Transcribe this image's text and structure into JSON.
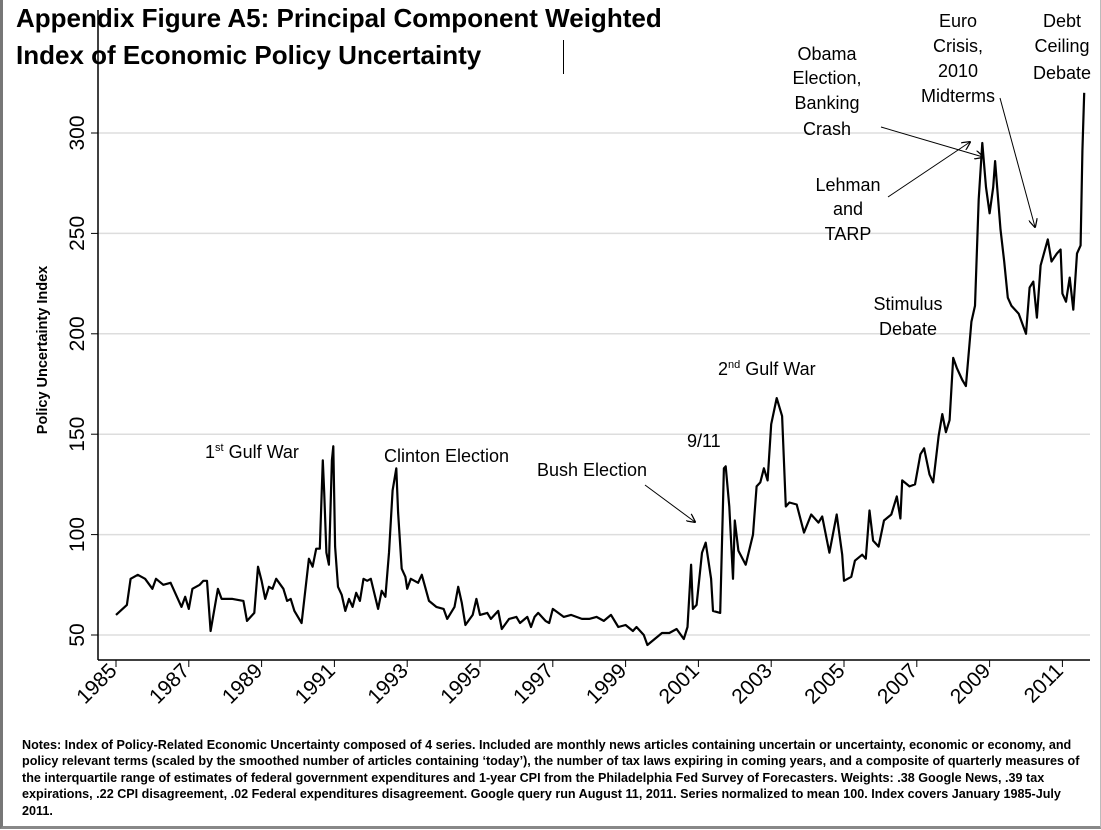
{
  "title_lines": [
    "Appendix Figure A5: Principal Component Weighted",
    "Index of Economic Policy Uncertainty"
  ],
  "notes": "Notes: Index of Policy-Related Economic Uncertainty composed of 4 series. Included are monthly news articles containing uncertain or uncertainty, economic or economy, and policy relevant terms (scaled by the smoothed number of articles containing ‘today’), the number of tax laws expiring in coming years, and a composite of quarterly measures of the interquartile range of estimates of federal government expenditures and 1-year CPI from the Philadelphia Fed Survey of Forecasters. Weights: .38 Google News, .39 tax expirations, .22 CPI disagreement, .02 Federal expenditures disagreement. Google query run August 11, 2011. Series normalized to mean 100. Index covers January 1985-July 2011.",
  "chart_data": {
    "type": "line",
    "title": "Appendix Figure A5: Principal Component Weighted Index of Economic Policy Uncertainty",
    "xlabel": "",
    "ylabel": "Policy Uncertainty Index",
    "xlim": [
      1985,
      2011.6
    ],
    "ylim": [
      40,
      325
    ],
    "x_ticks": [
      "1985",
      "1987",
      "1989",
      "1991",
      "1993",
      "1995",
      "1997",
      "1999",
      "2001",
      "2003",
      "2005",
      "2007",
      "2009",
      "2011"
    ],
    "y_ticks": [
      "50",
      "100",
      "150",
      "200",
      "250",
      "300"
    ],
    "grid": true,
    "line_color": "#000000",
    "grid_color": "#dddddd",
    "x": [
      1985.0,
      1985.3,
      1985.4,
      1985.6,
      1985.8,
      1986.0,
      1986.1,
      1986.3,
      1986.5,
      1986.8,
      1986.9,
      1987.0,
      1987.1,
      1987.3,
      1987.4,
      1987.5,
      1987.6,
      1987.8,
      1987.9,
      1988.2,
      1988.5,
      1988.6,
      1988.8,
      1988.9,
      1989.0,
      1989.1,
      1989.2,
      1989.3,
      1989.4,
      1989.6,
      1989.7,
      1989.8,
      1989.9,
      1990.1,
      1990.3,
      1990.4,
      1990.5,
      1990.6,
      1990.68,
      1990.72,
      1990.78,
      1990.85,
      1990.93,
      1990.97,
      1991.02,
      1991.1,
      1991.2,
      1991.3,
      1991.4,
      1991.5,
      1991.6,
      1991.7,
      1991.8,
      1991.9,
      1992.0,
      1992.2,
      1992.3,
      1992.4,
      1992.5,
      1992.6,
      1992.7,
      1992.75,
      1992.85,
      1992.95,
      1993.0,
      1993.1,
      1993.3,
      1993.4,
      1993.6,
      1993.8,
      1994.0,
      1994.1,
      1994.3,
      1994.4,
      1994.5,
      1994.6,
      1994.8,
      1994.9,
      1995.0,
      1995.2,
      1995.3,
      1995.5,
      1995.6,
      1995.8,
      1996.0,
      1996.1,
      1996.3,
      1996.4,
      1996.5,
      1996.6,
      1996.8,
      1996.9,
      1997.0,
      1997.3,
      1997.5,
      1997.8,
      1998.0,
      1998.2,
      1998.4,
      1998.6,
      1998.8,
      1999.0,
      1999.2,
      1999.3,
      1999.5,
      1999.6,
      1999.8,
      2000.0,
      2000.2,
      2000.4,
      2000.6,
      2000.7,
      2000.8,
      2000.85,
      2000.95,
      2001.1,
      2001.2,
      2001.35,
      2001.4,
      2001.6,
      2001.7,
      2001.75,
      2001.85,
      2001.95,
      2002.0,
      2002.1,
      2002.3,
      2002.5,
      2002.6,
      2002.7,
      2002.8,
      2002.9,
      2003.0,
      2003.15,
      2003.3,
      2003.4,
      2003.5,
      2003.7,
      2003.9,
      2004.1,
      2004.3,
      2004.4,
      2004.6,
      2004.8,
      2004.95,
      2005.0,
      2005.2,
      2005.3,
      2005.5,
      2005.6,
      2005.7,
      2005.8,
      2005.95,
      2006.1,
      2006.3,
      2006.45,
      2006.55,
      2006.6,
      2006.8,
      2006.95,
      2007.1,
      2007.2,
      2007.35,
      2007.45,
      2007.6,
      2007.7,
      2007.8,
      2007.9,
      2008.0,
      2008.1,
      2008.25,
      2008.35,
      2008.5,
      2008.6,
      2008.7,
      2008.8,
      2008.9,
      2009.0,
      2009.1,
      2009.15,
      2009.3,
      2009.4,
      2009.5,
      2009.6,
      2009.8,
      2010.0,
      2010.1,
      2010.2,
      2010.3,
      2010.4,
      2010.6,
      2010.7,
      2010.85,
      2010.95,
      2011.0,
      2011.1,
      2011.2,
      2011.3,
      2011.4,
      2011.5,
      2011.55,
      2011.6
    ],
    "values": [
      60,
      65,
      78,
      80,
      78,
      73,
      78,
      75,
      76,
      64,
      69,
      63,
      73,
      75,
      77,
      77,
      52,
      73,
      68,
      68,
      67,
      57,
      61,
      84,
      77,
      68,
      74,
      73,
      78,
      73,
      67,
      68,
      62,
      56,
      88,
      84,
      93,
      93,
      137,
      121,
      91,
      85,
      137,
      144,
      94,
      74,
      70,
      62,
      68,
      64,
      71,
      67,
      78,
      77,
      78,
      63,
      72,
      69,
      91,
      122,
      133,
      111,
      83,
      79,
      73,
      78,
      76,
      80,
      67,
      64,
      63,
      58,
      64,
      74,
      66,
      55,
      60,
      68,
      60,
      61,
      58,
      62,
      53,
      58,
      59,
      56,
      59,
      54,
      59,
      61,
      57,
      56,
      63,
      59,
      60,
      58,
      58,
      59,
      57,
      60,
      54,
      55,
      52,
      54,
      50,
      45,
      48,
      51,
      51,
      53,
      48,
      54,
      85,
      63,
      65,
      91,
      96,
      78,
      62,
      61,
      133,
      134,
      114,
      78,
      107,
      92,
      85,
      100,
      124,
      126,
      133,
      127,
      155,
      168,
      159,
      114,
      116,
      115,
      101,
      110,
      106,
      109,
      91,
      110,
      90,
      77,
      79,
      87,
      90,
      88,
      112,
      97,
      94,
      107,
      110,
      119,
      108,
      127,
      124,
      125,
      140,
      143,
      130,
      126,
      149,
      160,
      151,
      157,
      188,
      183,
      177,
      174,
      206,
      214,
      267,
      295,
      273,
      260,
      273,
      286,
      252,
      236,
      218,
      214,
      210,
      200,
      223,
      226,
      208,
      234,
      247,
      236,
      240,
      242,
      220,
      216,
      228,
      212,
      240,
      244,
      291,
      320
    ],
    "annotations": {
      "gulf1": {
        "num": "1",
        "sup": "st",
        "text": " Gulf War"
      },
      "clinton": "Clinton Election",
      "bush": "Bush Election",
      "nine11": "9/11",
      "gulf2": {
        "num": "2",
        "sup": "nd",
        "text": " Gulf War"
      },
      "stimulus": [
        "Stimulus",
        "Debate"
      ],
      "lehman": [
        "Lehman",
        "and",
        "TARP"
      ],
      "obama": [
        "Obama",
        "Election,",
        "Banking",
        "Crash"
      ],
      "euro": [
        "Euro",
        "Crisis,",
        "2010",
        "Midterms"
      ],
      "debt": [
        "Debt",
        "Ceiling",
        "Debate"
      ]
    }
  }
}
